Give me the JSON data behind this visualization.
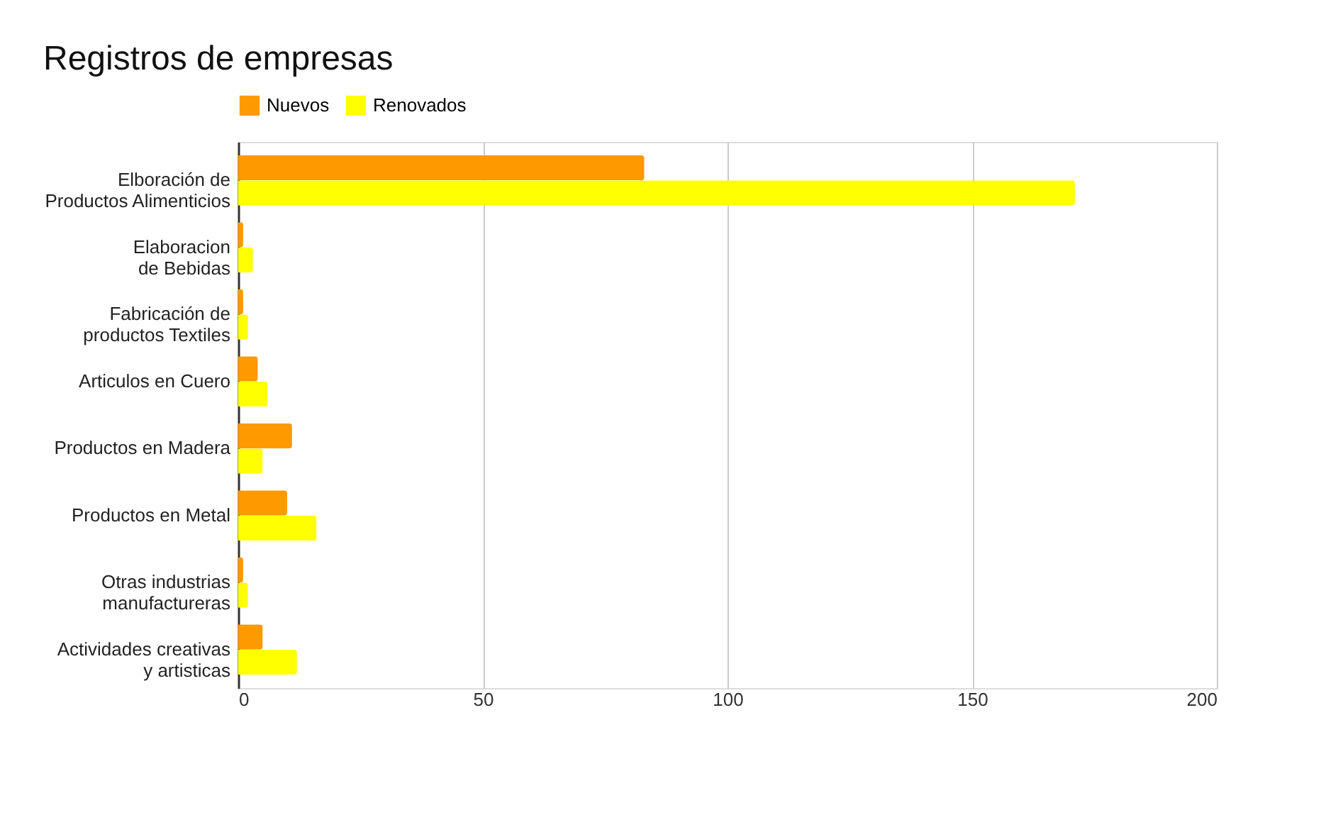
{
  "chart_data": {
    "type": "bar",
    "orientation": "horizontal",
    "title": "Registros de empresas",
    "categories": [
      "Elboración de Productos Alimenticios",
      "Elaboracion de Bebidas",
      "Fabricación de productos Textiles",
      "Articulos en Cuero",
      "Productos en Madera",
      "Productos en Metal",
      "Otras industrias manufactureras",
      "Actividades creativas y artisticas"
    ],
    "series": [
      {
        "name": "Nuevos",
        "color": "#ff9900",
        "values": [
          83,
          1,
          1,
          4,
          11,
          10,
          1,
          5
        ]
      },
      {
        "name": "Renovados",
        "color": "#ffff00",
        "values": [
          171,
          3,
          2,
          6,
          5,
          16,
          2,
          12
        ]
      }
    ],
    "xlim": [
      0,
      200
    ],
    "xticks": [
      0,
      50,
      100,
      150,
      200
    ],
    "grid": "x",
    "legend": "top"
  }
}
